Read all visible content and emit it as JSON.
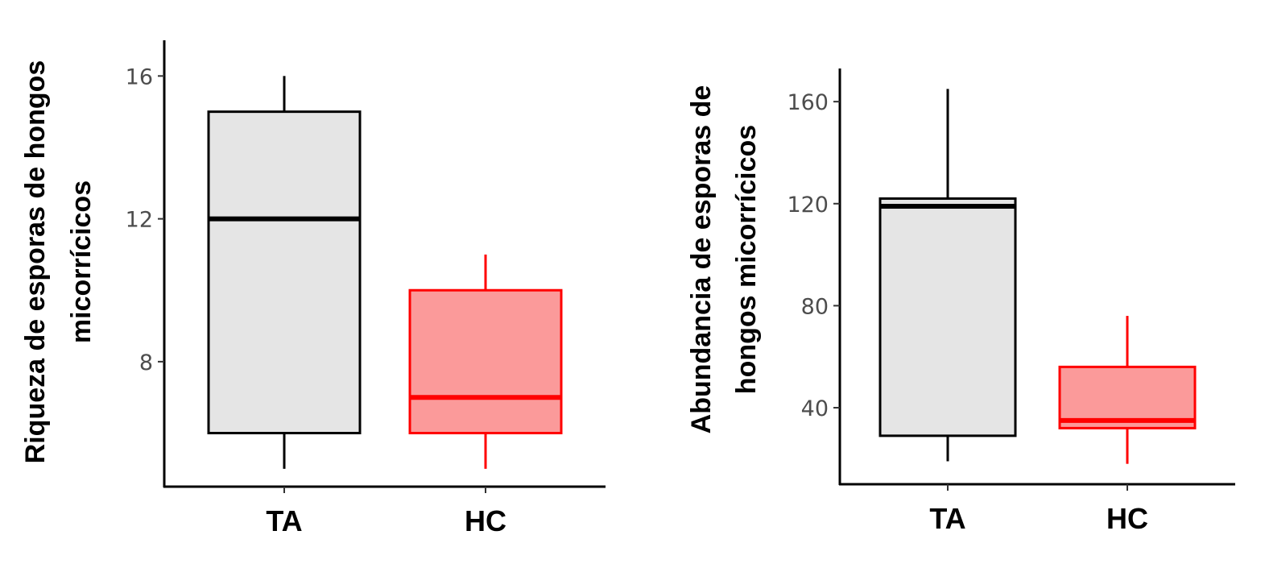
{
  "chart_data": [
    {
      "type": "boxplot",
      "ylabel_lines": [
        "Riqueza de esporas de hongos",
        "micorrícicos"
      ],
      "xlabel": "",
      "ylim": [
        4.5,
        17
      ],
      "yticks": [
        8,
        12,
        16
      ],
      "categories": [
        "TA",
        "HC"
      ],
      "boxes": [
        {
          "category": "TA",
          "min": 5,
          "q1": 6,
          "median": 12,
          "q3": 15,
          "max": 16,
          "fill": "#e5e5e5",
          "stroke": "#000000"
        },
        {
          "category": "HC",
          "min": 5,
          "q1": 6,
          "median": 7,
          "q3": 10,
          "max": 11,
          "fill": "#fb9a9a",
          "stroke": "#ff0000"
        }
      ]
    },
    {
      "type": "boxplot",
      "ylabel_lines": [
        "Abundancia de esporas de",
        "hongos micorrícicos"
      ],
      "xlabel": "",
      "ylim": [
        10,
        173
      ],
      "yticks": [
        40,
        80,
        120,
        160
      ],
      "categories": [
        "TA",
        "HC"
      ],
      "boxes": [
        {
          "category": "TA",
          "min": 19,
          "q1": 29,
          "median": 119,
          "q3": 122,
          "max": 165,
          "fill": "#e5e5e5",
          "stroke": "#000000"
        },
        {
          "category": "HC",
          "min": 18,
          "q1": 32,
          "median": 35,
          "q3": 56,
          "max": 76,
          "fill": "#fb9a9a",
          "stroke": "#ff0000"
        }
      ]
    }
  ]
}
